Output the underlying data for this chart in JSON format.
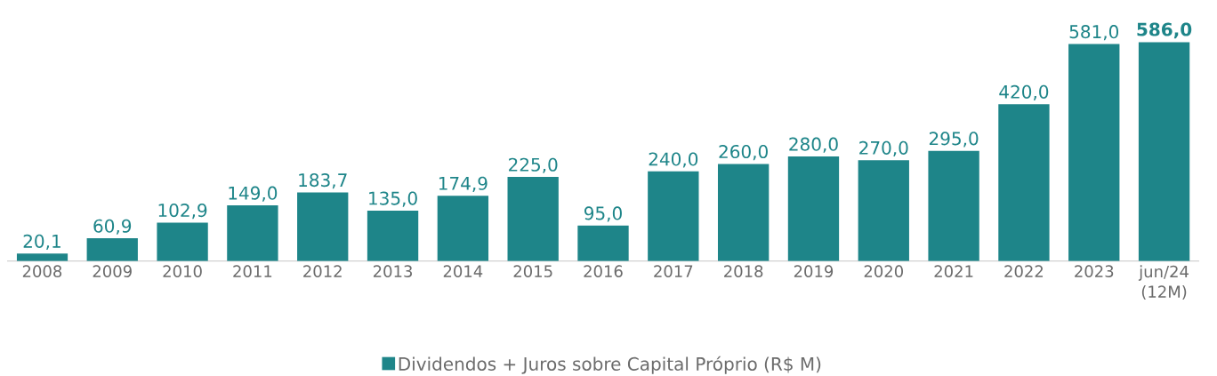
{
  "chart_data": {
    "type": "bar",
    "categories": [
      "2008",
      "2009",
      "2010",
      "2011",
      "2012",
      "2013",
      "2014",
      "2015",
      "2016",
      "2017",
      "2018",
      "2019",
      "2020",
      "2021",
      "2022",
      "2023",
      "jun/24 (12M)"
    ],
    "series": [
      {
        "name": "Dividendos + Juros sobre Capital Próprio (R$ M)",
        "color": "#1e8589",
        "values": [
          20.1,
          60.9,
          102.9,
          149.0,
          183.7,
          135.0,
          174.9,
          225.0,
          95.0,
          240.0,
          260.0,
          280.0,
          270.0,
          295.0,
          420.0,
          581.0,
          586.0
        ],
        "value_labels": [
          "20,1",
          "60,9",
          "102,9",
          "149,0",
          "183,7",
          "135,0",
          "174,9",
          "225,0",
          "95,0",
          "240,0",
          "260,0",
          "280,0",
          "270,0",
          "295,0",
          "420,0",
          "581,0",
          "**586,0**"
        ]
      }
    ],
    "legend": "bottom",
    "tick_labels": "x"
  }
}
